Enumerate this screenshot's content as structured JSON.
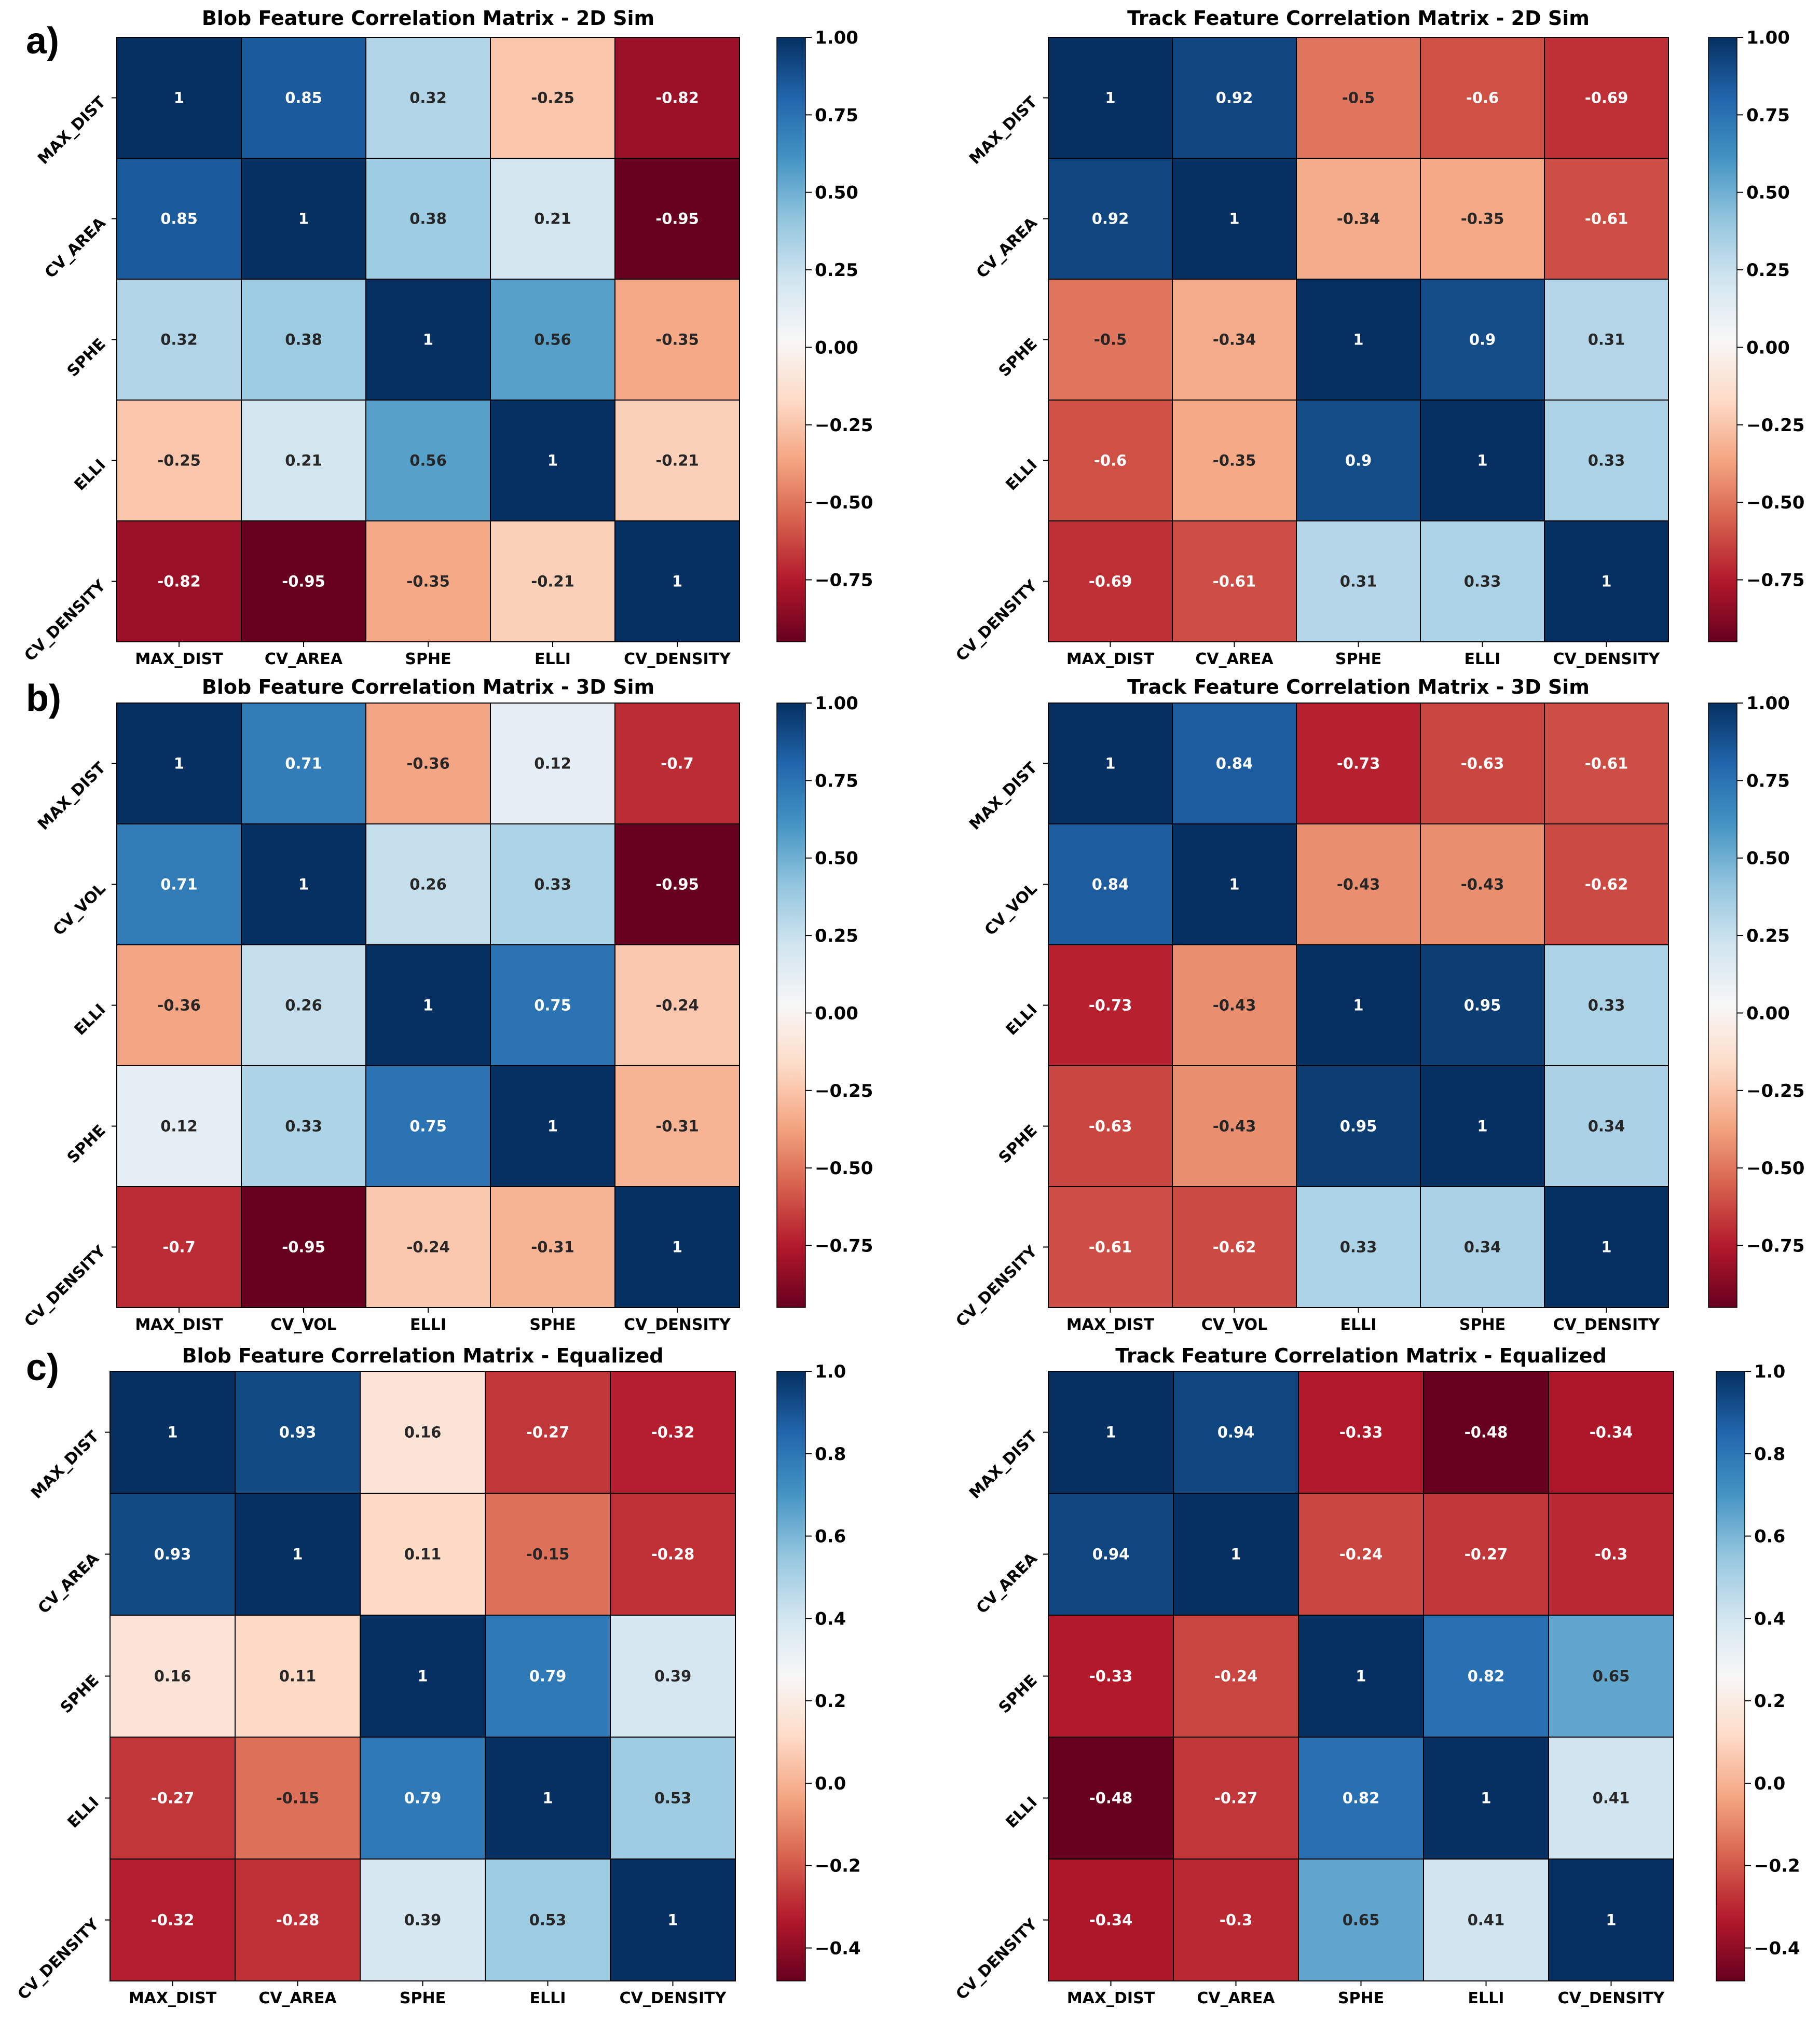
{
  "figure": {
    "panel_labels": [
      "a)",
      "b)",
      "c)"
    ],
    "colormap": [
      "#67001f",
      "#b2182b",
      "#d6604d",
      "#f4a582",
      "#fddbc7",
      "#f7f7f7",
      "#d1e5f0",
      "#92c5de",
      "#4393c3",
      "#2166ac",
      "#053061"
    ]
  },
  "chart_data": [
    {
      "type": "heatmap",
      "panel": "a)",
      "title": "Blob Feature Correlation Matrix - 2D Sim",
      "x_labels": [
        "MAX_DIST",
        "CV_AREA",
        "SPHE",
        "ELLI",
        "CV_DENSITY"
      ],
      "y_labels": [
        "MAX_DIST",
        "CV_AREA",
        "SPHE",
        "ELLI",
        "CV_DENSITY"
      ],
      "values": [
        [
          1,
          0.85,
          0.32,
          -0.25,
          -0.82
        ],
        [
          0.85,
          1,
          0.38,
          0.21,
          -0.95
        ],
        [
          0.32,
          0.38,
          1,
          0.56,
          -0.35
        ],
        [
          -0.25,
          0.21,
          0.56,
          1,
          -0.21
        ],
        [
          -0.82,
          -0.95,
          -0.35,
          -0.21,
          1
        ]
      ],
      "vmin": -0.95,
      "vmax": 1.0,
      "colorbar_ticks": [
        1.0,
        0.75,
        0.5,
        0.25,
        0.0,
        -0.25,
        -0.5,
        -0.75
      ],
      "colorbar_tick_labels": [
        "1.00",
        "0.75",
        "0.50",
        "0.25",
        "0.00",
        "−0.25",
        "−0.50",
        "−0.75"
      ]
    },
    {
      "type": "heatmap",
      "panel": "a)",
      "title": "Track Feature Correlation Matrix - 2D Sim",
      "x_labels": [
        "MAX_DIST",
        "CV_AREA",
        "SPHE",
        "ELLI",
        "CV_DENSITY"
      ],
      "y_labels": [
        "MAX_DIST",
        "CV_AREA",
        "SPHE",
        "ELLI",
        "CV_DENSITY"
      ],
      "values": [
        [
          1,
          0.92,
          -0.5,
          -0.6,
          -0.69
        ],
        [
          0.92,
          1,
          -0.34,
          -0.35,
          -0.61
        ],
        [
          -0.5,
          -0.34,
          1,
          0.9,
          0.31
        ],
        [
          -0.6,
          -0.35,
          0.9,
          1,
          0.33
        ],
        [
          -0.69,
          -0.61,
          0.31,
          0.33,
          1
        ]
      ],
      "vmin": -0.95,
      "vmax": 1.0,
      "colorbar_ticks": [
        1.0,
        0.75,
        0.5,
        0.25,
        0.0,
        -0.25,
        -0.5,
        -0.75
      ],
      "colorbar_tick_labels": [
        "1.00",
        "0.75",
        "0.50",
        "0.25",
        "0.00",
        "−0.25",
        "−0.50",
        "−0.75"
      ]
    },
    {
      "type": "heatmap",
      "panel": "b)",
      "title": "Blob Feature Correlation Matrix - 3D Sim",
      "x_labels": [
        "MAX_DIST",
        "CV_VOL",
        "ELLI",
        "SPHE",
        "CV_DENSITY"
      ],
      "y_labels": [
        "MAX_DIST",
        "CV_VOL",
        "ELLI",
        "SPHE",
        "CV_DENSITY"
      ],
      "values": [
        [
          1,
          0.71,
          -0.36,
          0.12,
          -0.7
        ],
        [
          0.71,
          1,
          0.26,
          0.33,
          -0.95
        ],
        [
          -0.36,
          0.26,
          1,
          0.75,
          -0.24
        ],
        [
          0.12,
          0.33,
          0.75,
          1,
          -0.31
        ],
        [
          -0.7,
          -0.95,
          -0.24,
          -0.31,
          1
        ]
      ],
      "vmin": -0.95,
      "vmax": 1.0,
      "colorbar_ticks": [
        1.0,
        0.75,
        0.5,
        0.25,
        0.0,
        -0.25,
        -0.5,
        -0.75
      ],
      "colorbar_tick_labels": [
        "1.00",
        "0.75",
        "0.50",
        "0.25",
        "0.00",
        "−0.25",
        "−0.50",
        "−0.75"
      ]
    },
    {
      "type": "heatmap",
      "panel": "b)",
      "title": "Track Feature Correlation Matrix - 3D Sim",
      "x_labels": [
        "MAX_DIST",
        "CV_VOL",
        "ELLI",
        "SPHE",
        "CV_DENSITY"
      ],
      "y_labels": [
        "MAX_DIST",
        "CV_VOL",
        "ELLI",
        "SPHE",
        "CV_DENSITY"
      ],
      "values": [
        [
          1,
          0.84,
          -0.73,
          -0.63,
          -0.61
        ],
        [
          0.84,
          1,
          -0.43,
          -0.43,
          -0.62
        ],
        [
          -0.73,
          -0.43,
          1,
          0.95,
          0.33
        ],
        [
          -0.63,
          -0.43,
          0.95,
          1,
          0.34
        ],
        [
          -0.61,
          -0.62,
          0.33,
          0.34,
          1
        ]
      ],
      "vmin": -0.95,
      "vmax": 1.0,
      "colorbar_ticks": [
        1.0,
        0.75,
        0.5,
        0.25,
        0.0,
        -0.25,
        -0.5,
        -0.75
      ],
      "colorbar_tick_labels": [
        "1.00",
        "0.75",
        "0.50",
        "0.25",
        "0.00",
        "−0.25",
        "−0.50",
        "−0.75"
      ]
    },
    {
      "type": "heatmap",
      "panel": "c)",
      "title": "Blob Feature Correlation Matrix - Equalized",
      "x_labels": [
        "MAX_DIST",
        "CV_AREA",
        "SPHE",
        "ELLI",
        "CV_DENSITY"
      ],
      "y_labels": [
        "MAX_DIST",
        "CV_AREA",
        "SPHE",
        "ELLI",
        "CV_DENSITY"
      ],
      "values": [
        [
          1,
          0.93,
          0.16,
          -0.27,
          -0.32
        ],
        [
          0.93,
          1,
          0.11,
          -0.15,
          -0.28
        ],
        [
          0.16,
          0.11,
          1,
          0.79,
          0.39
        ],
        [
          -0.27,
          -0.15,
          0.79,
          1,
          0.53
        ],
        [
          -0.32,
          -0.28,
          0.39,
          0.53,
          1
        ]
      ],
      "vmin": -0.48,
      "vmax": 1.0,
      "colorbar_ticks": [
        1.0,
        0.8,
        0.6,
        0.4,
        0.2,
        0.0,
        -0.2,
        -0.4
      ],
      "colorbar_tick_labels": [
        "1.0",
        "0.8",
        "0.6",
        "0.4",
        "0.2",
        "0.0",
        "−0.2",
        "−0.4"
      ]
    },
    {
      "type": "heatmap",
      "panel": "c)",
      "title": "Track Feature Correlation Matrix - Equalized",
      "x_labels": [
        "MAX_DIST",
        "CV_AREA",
        "SPHE",
        "ELLI",
        "CV_DENSITY"
      ],
      "y_labels": [
        "MAX_DIST",
        "CV_AREA",
        "SPHE",
        "ELLI",
        "CV_DENSITY"
      ],
      "values": [
        [
          1,
          0.94,
          -0.33,
          -0.48,
          -0.34
        ],
        [
          0.94,
          1,
          -0.24,
          -0.27,
          -0.3
        ],
        [
          -0.33,
          -0.24,
          1,
          0.82,
          0.65
        ],
        [
          -0.48,
          -0.27,
          0.82,
          1,
          0.41
        ],
        [
          -0.34,
          -0.3,
          0.65,
          0.41,
          1
        ]
      ],
      "vmin": -0.48,
      "vmax": 1.0,
      "colorbar_ticks": [
        1.0,
        0.8,
        0.6,
        0.4,
        0.2,
        0.0,
        -0.2,
        -0.4
      ],
      "colorbar_tick_labels": [
        "1.0",
        "0.8",
        "0.6",
        "0.4",
        "0.2",
        "0.0",
        "−0.2",
        "−0.4"
      ]
    }
  ]
}
